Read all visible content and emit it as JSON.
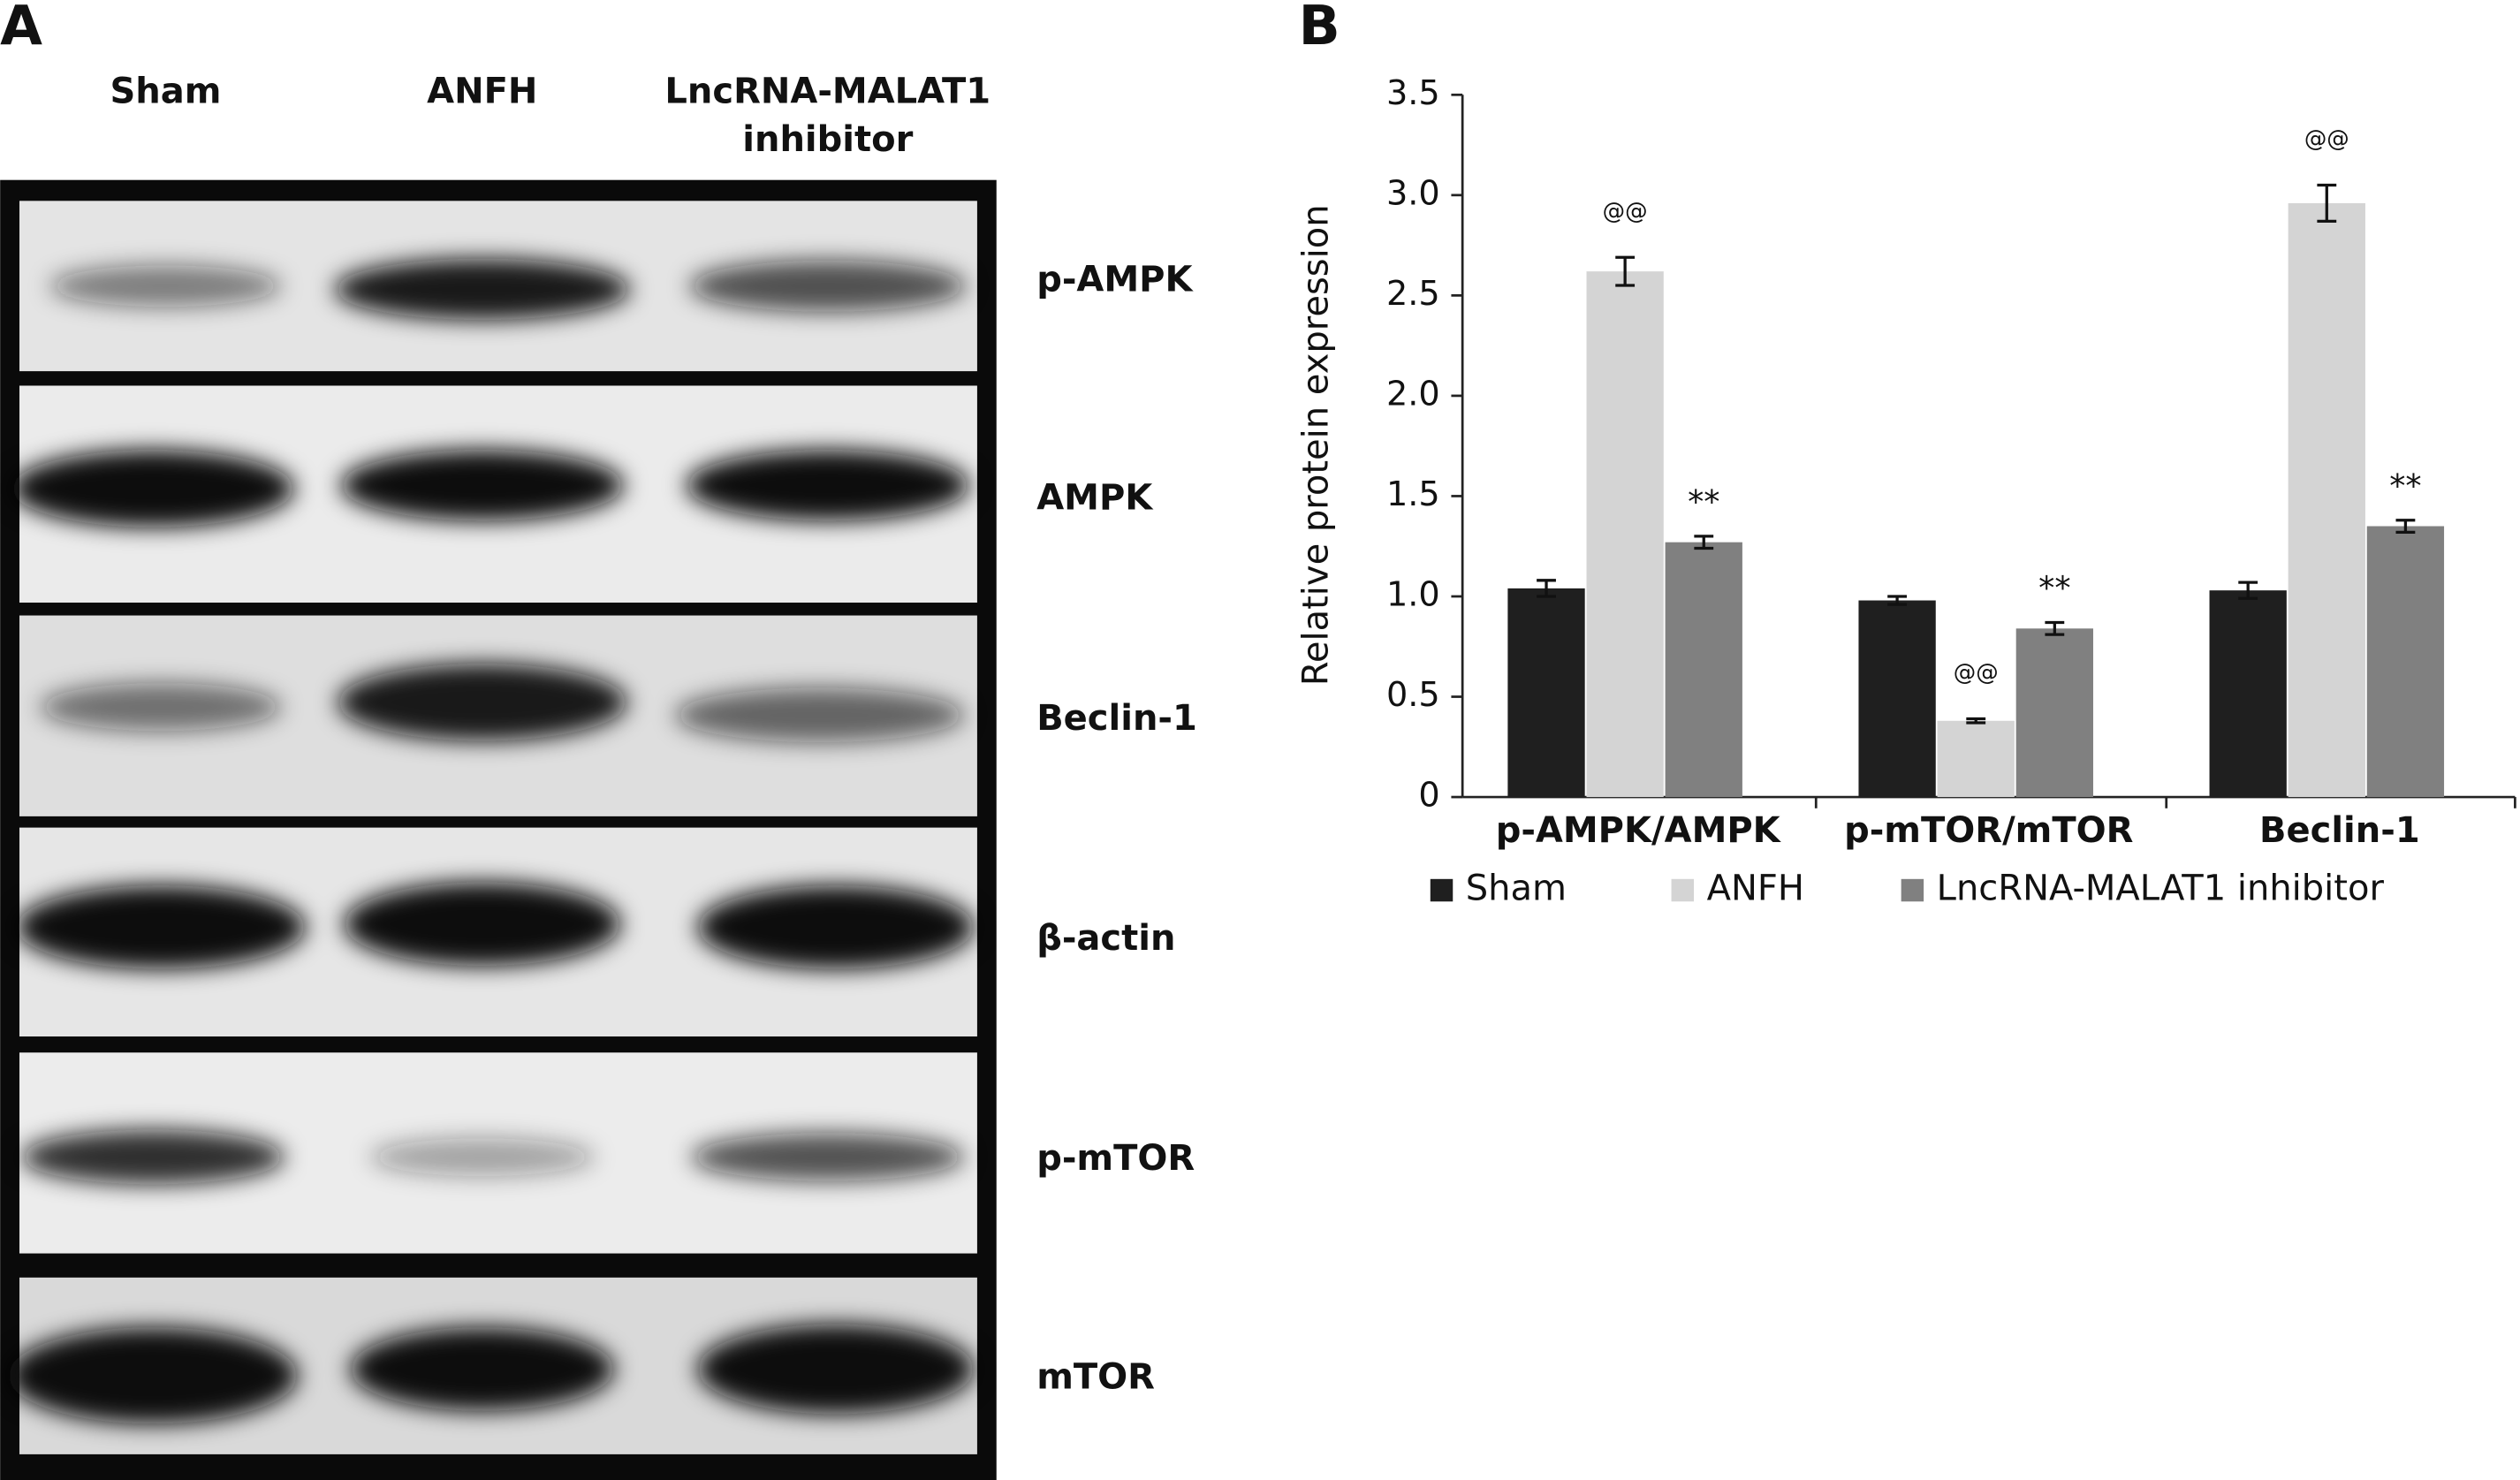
{
  "panel_a": {
    "label": "A",
    "lanes": [
      [
        "Sham"
      ],
      [
        "ANFH"
      ],
      [
        "LncRNA-MALAT1",
        "inhibitor"
      ]
    ],
    "rows": [
      "p-AMPK",
      "AMPK",
      "Beclin-1",
      "β-actin",
      "p-mTOR",
      "mTOR"
    ]
  },
  "panel_b": {
    "label": "B"
  },
  "chart_data": {
    "type": "bar",
    "ylabel": "Relative protein expression",
    "categories": [
      "p-AMPK/AMPK",
      "p-mTOR/mTOR",
      "Beclin-1"
    ],
    "series": [
      {
        "name": "Sham",
        "color": "#1f1f1f",
        "values": [
          1.04,
          0.98,
          1.03
        ],
        "errors": [
          0.04,
          0.02,
          0.04
        ]
      },
      {
        "name": "ANFH",
        "color": "#d4d4d4",
        "values": [
          2.62,
          0.38,
          2.96
        ],
        "errors": [
          0.07,
          0.01,
          0.09
        ],
        "annotations": [
          "@@",
          "@@",
          "@@"
        ]
      },
      {
        "name": "LncRNA-MALAT1 inhibitor",
        "color": "#808080",
        "values": [
          1.27,
          0.84,
          1.35
        ],
        "errors": [
          0.03,
          0.03,
          0.03
        ],
        "annotations": [
          "**",
          "**",
          "**"
        ]
      }
    ],
    "ylim": [
      0,
      3.5
    ],
    "yticks": [
      0,
      0.5,
      {
        "value": 1,
        "label": "1.0"
      },
      1.5,
      {
        "value": 2,
        "label": "2.0"
      },
      2.5,
      {
        "value": 3,
        "label": "3.0"
      },
      3.5
    ],
    "legend": "bottom"
  }
}
